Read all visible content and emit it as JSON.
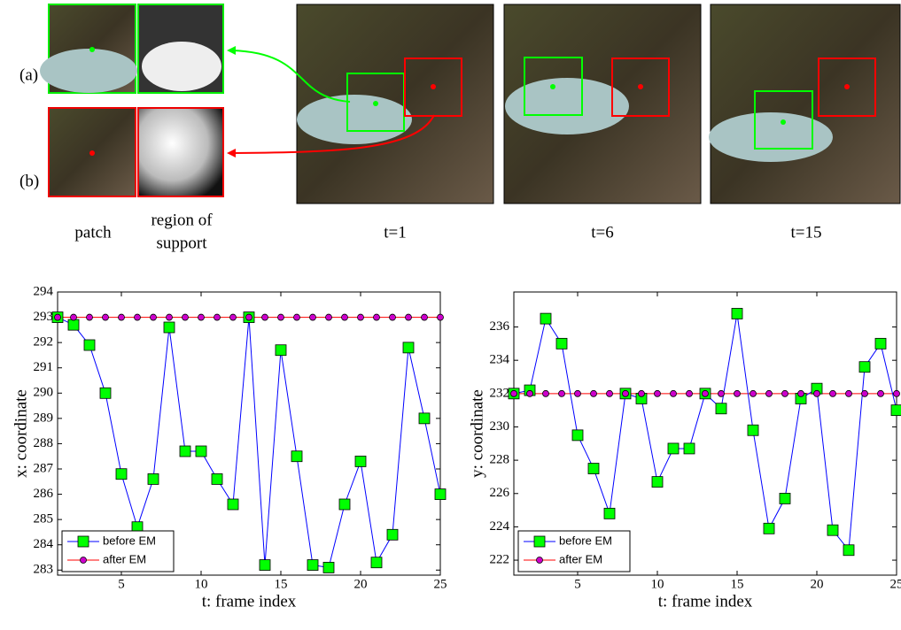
{
  "figure": {
    "row_labels": [
      "(a)",
      "(b)"
    ],
    "patch_label": "patch",
    "support_label": [
      "region of",
      "support"
    ],
    "frame_labels": [
      "t=1",
      "t=6",
      "t=15"
    ]
  },
  "chart_data": [
    {
      "type": "line",
      "xlabel": "t: frame index",
      "ylabel": "x: coordinate",
      "x": [
        1,
        2,
        3,
        4,
        5,
        6,
        7,
        8,
        9,
        10,
        11,
        12,
        13,
        14,
        15,
        16,
        17,
        18,
        19,
        20,
        21,
        22,
        23,
        24,
        25
      ],
      "xlim": [
        1,
        25
      ],
      "xticks": [
        5,
        10,
        15,
        20,
        25
      ],
      "ylim": [
        282.8,
        294
      ],
      "yticks": [
        283,
        284,
        285,
        286,
        287,
        288,
        289,
        290,
        291,
        292,
        293,
        294
      ],
      "legend": "lower left",
      "series": [
        {
          "name": "before EM",
          "color": "#0000ff",
          "marker": "square",
          "marker_color": "#00ff00",
          "values": [
            293,
            292.7,
            291.9,
            290.0,
            286.8,
            284.7,
            286.6,
            292.6,
            287.7,
            287.7,
            286.6,
            285.6,
            293,
            283.2,
            291.7,
            287.5,
            283.2,
            283.1,
            285.6,
            287.3,
            283.3,
            284.4,
            291.8,
            289.0,
            286.0
          ]
        },
        {
          "name": "after EM",
          "color": "#ff0000",
          "marker": "circle",
          "marker_color": "#cc00cc",
          "values": [
            293,
            293,
            293,
            293,
            293,
            293,
            293,
            293,
            293,
            293,
            293,
            293,
            293,
            293,
            293,
            293,
            293,
            293,
            293,
            293,
            293,
            293,
            293,
            293,
            293
          ]
        }
      ]
    },
    {
      "type": "line",
      "xlabel": "t: frame index",
      "ylabel": "y: coordinate",
      "x": [
        1,
        2,
        3,
        4,
        5,
        6,
        7,
        8,
        9,
        10,
        11,
        12,
        13,
        14,
        15,
        16,
        17,
        18,
        19,
        20,
        21,
        22,
        23,
        24,
        25
      ],
      "xlim": [
        1,
        25
      ],
      "xticks": [
        5,
        10,
        15,
        20,
        25
      ],
      "ylim": [
        221.1,
        238.1
      ],
      "yticks": [
        222,
        224,
        226,
        228,
        230,
        232,
        234,
        236
      ],
      "legend": "lower left",
      "series": [
        {
          "name": "before EM",
          "color": "#0000ff",
          "marker": "square",
          "marker_color": "#00ff00",
          "values": [
            232,
            232.2,
            236.5,
            235,
            229.5,
            227.5,
            224.8,
            232,
            231.7,
            226.7,
            228.7,
            228.7,
            232,
            231.1,
            236.8,
            229.8,
            223.9,
            225.7,
            231.7,
            232.3,
            223.8,
            222.6,
            233.6,
            235,
            231
          ]
        },
        {
          "name": "after EM",
          "color": "#ff0000",
          "marker": "circle",
          "marker_color": "#cc00cc",
          "values": [
            232,
            232,
            232,
            232,
            232,
            232,
            232,
            232,
            232,
            232,
            232,
            232,
            232,
            232,
            232,
            232,
            232,
            232,
            232,
            232,
            232,
            232,
            232,
            232,
            232
          ]
        }
      ]
    }
  ]
}
